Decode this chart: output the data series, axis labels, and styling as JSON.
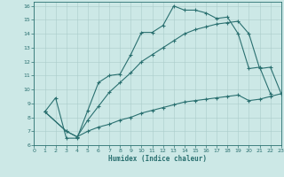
{
  "xlabel": "Humidex (Indice chaleur)",
  "background_color": "#cce8e6",
  "grid_color": "#aaccca",
  "line_color": "#2a7070",
  "xlim": [
    0,
    23
  ],
  "ylim": [
    6,
    16.3
  ],
  "xticks": [
    0,
    1,
    2,
    3,
    4,
    5,
    6,
    7,
    8,
    9,
    10,
    11,
    12,
    13,
    14,
    15,
    16,
    17,
    18,
    19,
    20,
    21,
    22,
    23
  ],
  "yticks": [
    6,
    7,
    8,
    9,
    10,
    11,
    12,
    13,
    14,
    15,
    16
  ],
  "series": [
    {
      "x": [
        1,
        2,
        3,
        4,
        5,
        6,
        7,
        8,
        9,
        10,
        11,
        12,
        13,
        14,
        15,
        16,
        17,
        18,
        19,
        20,
        21,
        22
      ],
      "y": [
        8.4,
        9.4,
        6.5,
        6.5,
        8.5,
        10.5,
        11.0,
        11.1,
        12.5,
        14.1,
        14.1,
        14.6,
        16.0,
        15.7,
        15.7,
        15.5,
        15.1,
        15.2,
        14.0,
        11.5,
        11.6,
        9.7
      ]
    },
    {
      "x": [
        1,
        3,
        4,
        5,
        6,
        7,
        8,
        9,
        10,
        11,
        12,
        13,
        14,
        15,
        16,
        17,
        18,
        19,
        20,
        21,
        22,
        23
      ],
      "y": [
        8.4,
        7.0,
        6.6,
        7.8,
        8.8,
        9.8,
        10.5,
        11.2,
        12.0,
        12.5,
        13.0,
        13.5,
        14.0,
        14.3,
        14.5,
        14.7,
        14.8,
        14.9,
        14.0,
        11.5,
        11.6,
        9.7
      ]
    },
    {
      "x": [
        1,
        3,
        4,
        5,
        6,
        7,
        8,
        9,
        10,
        11,
        12,
        13,
        14,
        15,
        16,
        17,
        18,
        19,
        20,
        21,
        22,
        23
      ],
      "y": [
        8.4,
        7.0,
        6.6,
        7.0,
        7.3,
        7.5,
        7.8,
        8.0,
        8.3,
        8.5,
        8.7,
        8.9,
        9.1,
        9.2,
        9.3,
        9.4,
        9.5,
        9.6,
        9.2,
        9.3,
        9.5,
        9.7
      ]
    }
  ],
  "figsize": [
    3.2,
    2.0
  ],
  "dpi": 100
}
